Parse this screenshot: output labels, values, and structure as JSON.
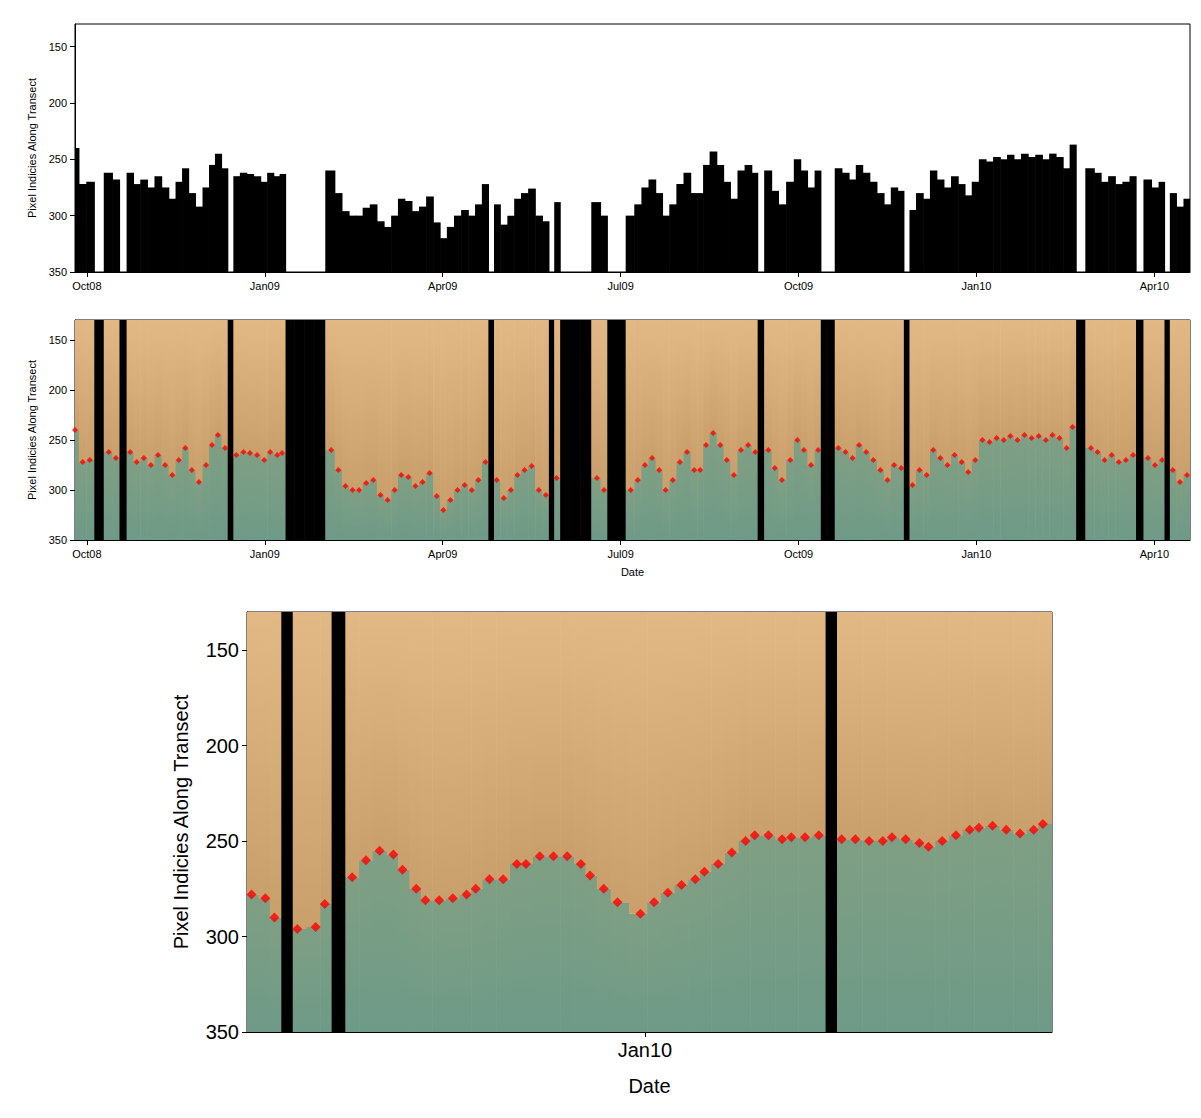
{
  "chart_data": [
    {
      "type": "area",
      "y_label": "Pixel Indicies Along Transect",
      "color": "#000000",
      "xlim": [
        -0.2,
        18.6
      ],
      "xticks": [
        {
          "value": 0,
          "label": "Oct08"
        },
        {
          "value": 3,
          "label": "Jan09"
        },
        {
          "value": 6,
          "label": "Apr09"
        },
        {
          "value": 9,
          "label": "Jul09"
        },
        {
          "value": 12,
          "label": "Oct09"
        },
        {
          "value": 15,
          "label": "Jan10"
        },
        {
          "value": 18,
          "label": "Apr10"
        }
      ],
      "ylim": [
        130,
        350
      ],
      "yticks": [
        150,
        200,
        250,
        300,
        350
      ],
      "grid": false,
      "x": [
        -0.2,
        -0.07,
        0.05,
        0.2,
        0.37,
        0.49,
        0.61,
        0.73,
        0.84,
        0.96,
        1.08,
        1.2,
        1.32,
        1.44,
        1.55,
        1.66,
        1.77,
        1.89,
        2.01,
        2.11,
        2.21,
        2.33,
        2.42,
        2.52,
        2.64,
        2.75,
        2.87,
        2.99,
        3.09,
        3.21,
        3.29,
        3.41,
        3.58,
        3.75,
        3.92,
        4.12,
        4.24,
        4.36,
        4.48,
        4.59,
        4.71,
        4.83,
        4.95,
        5.07,
        5.19,
        5.3,
        5.42,
        5.54,
        5.66,
        5.78,
        5.9,
        6.01,
        6.13,
        6.25,
        6.37,
        6.49,
        6.6,
        6.72,
        6.82,
        6.91,
        7.03,
        7.15,
        7.26,
        7.38,
        7.5,
        7.62,
        7.74,
        7.84,
        7.92,
        8.04,
        8.23,
        8.41,
        8.6,
        8.72,
        8.83,
        9.0,
        9.17,
        9.29,
        9.41,
        9.53,
        9.65,
        9.76,
        9.88,
        10.0,
        10.12,
        10.24,
        10.34,
        10.44,
        10.56,
        10.68,
        10.79,
        10.91,
        11.03,
        11.15,
        11.27,
        11.35,
        11.49,
        11.6,
        11.72,
        11.86,
        11.98,
        12.09,
        12.21,
        12.33,
        12.42,
        12.55,
        12.67,
        12.79,
        12.91,
        13.02,
        13.14,
        13.26,
        13.38,
        13.5,
        13.61,
        13.73,
        13.82,
        13.92,
        14.04,
        14.16,
        14.27,
        14.39,
        14.51,
        14.63,
        14.75,
        14.86,
        14.98,
        15.1,
        15.22,
        15.34,
        15.46,
        15.57,
        15.69,
        15.81,
        15.93,
        16.05,
        16.17,
        16.28,
        16.4,
        16.52,
        16.62,
        16.74,
        16.93,
        17.04,
        17.16,
        17.28,
        17.4,
        17.52,
        17.64,
        17.74,
        17.89,
        18.01,
        18.13,
        18.21,
        18.31,
        18.43,
        18.55
      ],
      "values": [
        240,
        272,
        270,
        null,
        262,
        268,
        null,
        262,
        272,
        268,
        275,
        265,
        275,
        285,
        270,
        258,
        280,
        292,
        275,
        255,
        245,
        258,
        null,
        265,
        262,
        263,
        265,
        270,
        262,
        265,
        263,
        null,
        null,
        null,
        null,
        260,
        280,
        296,
        300,
        300,
        293,
        290,
        305,
        310,
        300,
        285,
        287,
        296,
        292,
        283,
        306,
        320,
        310,
        300,
        295,
        300,
        290,
        272,
        null,
        290,
        308,
        300,
        285,
        280,
        276,
        300,
        305,
        null,
        288,
        null,
        null,
        null,
        288,
        300,
        null,
        null,
        300,
        290,
        275,
        268,
        280,
        300,
        290,
        272,
        262,
        280,
        280,
        255,
        243,
        255,
        270,
        285,
        260,
        255,
        262,
        null,
        260,
        278,
        290,
        270,
        250,
        260,
        275,
        260,
        null,
        null,
        258,
        262,
        268,
        255,
        262,
        270,
        280,
        290,
        275,
        278,
        null,
        295,
        280,
        285,
        260,
        268,
        275,
        265,
        272,
        282,
        270,
        250,
        252,
        248,
        250,
        246,
        250,
        245,
        248,
        246,
        250,
        245,
        248,
        258,
        237,
        null,
        258,
        262,
        270,
        265,
        272,
        270,
        265,
        null,
        268,
        275,
        270,
        null,
        280,
        292,
        285
      ]
    },
    {
      "type": "scatter",
      "y_label": "Pixel Indicies Along Transect",
      "x_label": "Date",
      "color": "#ff0000",
      "marker": "diamond",
      "xlim": [
        -0.2,
        18.6
      ],
      "xticks": [
        {
          "value": 0,
          "label": "Oct08"
        },
        {
          "value": 3,
          "label": "Jan09"
        },
        {
          "value": 6,
          "label": "Apr09"
        },
        {
          "value": 9,
          "label": "Jul09"
        },
        {
          "value": 12,
          "label": "Oct09"
        },
        {
          "value": 15,
          "label": "Jan10"
        },
        {
          "value": 18,
          "label": "Apr10"
        }
      ],
      "ylim": [
        130,
        350
      ],
      "yticks": [
        150,
        200,
        250,
        300,
        350
      ],
      "grid": false,
      "x": [
        -0.2,
        -0.07,
        0.05,
        0.2,
        0.37,
        0.49,
        0.61,
        0.73,
        0.84,
        0.96,
        1.08,
        1.2,
        1.32,
        1.44,
        1.55,
        1.66,
        1.77,
        1.89,
        2.01,
        2.11,
        2.21,
        2.33,
        2.42,
        2.52,
        2.64,
        2.75,
        2.87,
        2.99,
        3.09,
        3.21,
        3.29,
        3.41,
        3.58,
        3.75,
        3.92,
        4.12,
        4.24,
        4.36,
        4.48,
        4.59,
        4.71,
        4.83,
        4.95,
        5.07,
        5.19,
        5.3,
        5.42,
        5.54,
        5.66,
        5.78,
        5.9,
        6.01,
        6.13,
        6.25,
        6.37,
        6.49,
        6.6,
        6.72,
        6.82,
        6.91,
        7.03,
        7.15,
        7.26,
        7.38,
        7.5,
        7.62,
        7.74,
        7.84,
        7.92,
        8.04,
        8.23,
        8.41,
        8.6,
        8.72,
        8.83,
        9.0,
        9.17,
        9.29,
        9.41,
        9.53,
        9.65,
        9.76,
        9.88,
        10.0,
        10.12,
        10.24,
        10.34,
        10.44,
        10.56,
        10.68,
        10.79,
        10.91,
        11.03,
        11.15,
        11.27,
        11.35,
        11.49,
        11.6,
        11.72,
        11.86,
        11.98,
        12.09,
        12.21,
        12.33,
        12.42,
        12.55,
        12.67,
        12.79,
        12.91,
        13.02,
        13.14,
        13.26,
        13.38,
        13.5,
        13.61,
        13.73,
        13.82,
        13.92,
        14.04,
        14.16,
        14.27,
        14.39,
        14.51,
        14.63,
        14.75,
        14.86,
        14.98,
        15.1,
        15.22,
        15.34,
        15.46,
        15.57,
        15.69,
        15.81,
        15.93,
        16.05,
        16.17,
        16.28,
        16.4,
        16.52,
        16.62,
        16.74,
        16.93,
        17.04,
        17.16,
        17.28,
        17.4,
        17.52,
        17.64,
        17.74,
        17.89,
        18.01,
        18.13,
        18.21,
        18.31,
        18.43,
        18.55
      ],
      "values": [
        240,
        272,
        270,
        null,
        262,
        268,
        null,
        262,
        272,
        268,
        275,
        265,
        275,
        285,
        270,
        258,
        280,
        292,
        275,
        255,
        245,
        258,
        null,
        265,
        262,
        263,
        265,
        270,
        262,
        265,
        263,
        null,
        null,
        null,
        null,
        260,
        280,
        296,
        300,
        300,
        293,
        290,
        305,
        310,
        300,
        285,
        287,
        296,
        292,
        283,
        306,
        320,
        310,
        300,
        295,
        300,
        290,
        272,
        null,
        290,
        308,
        300,
        285,
        280,
        276,
        300,
        305,
        null,
        288,
        null,
        null,
        null,
        288,
        300,
        null,
        null,
        300,
        290,
        275,
        268,
        280,
        300,
        290,
        272,
        262,
        280,
        280,
        255,
        243,
        255,
        270,
        285,
        260,
        255,
        262,
        null,
        260,
        278,
        290,
        270,
        250,
        260,
        275,
        260,
        null,
        null,
        258,
        262,
        268,
        255,
        262,
        270,
        280,
        290,
        275,
        278,
        null,
        295,
        280,
        285,
        260,
        268,
        275,
        265,
        272,
        282,
        270,
        250,
        252,
        248,
        250,
        246,
        250,
        245,
        248,
        246,
        250,
        245,
        248,
        258,
        237,
        null,
        258,
        262,
        270,
        265,
        272,
        270,
        265,
        null,
        268,
        275,
        270,
        null,
        280,
        292,
        285
      ]
    },
    {
      "type": "scatter",
      "y_label": "Pixel Indicies Along Transect",
      "x_label": "Date",
      "color": "#ff0000",
      "marker": "diamond",
      "xlim": [
        14.13,
        15.89
      ],
      "xticks": [
        {
          "value": 15,
          "label": "Jan10"
        }
      ],
      "ylim": [
        130,
        350
      ],
      "yticks": [
        150,
        200,
        250,
        300,
        350
      ],
      "grid": false,
      "x": [
        14.14,
        14.17,
        14.19,
        14.22,
        14.24,
        14.28,
        14.3,
        14.33,
        14.36,
        14.39,
        14.42,
        14.45,
        14.47,
        14.5,
        14.52,
        14.55,
        14.58,
        14.61,
        14.63,
        14.66,
        14.69,
        14.72,
        14.74,
        14.77,
        14.8,
        14.83,
        14.86,
        14.88,
        14.91,
        14.94,
        14.99,
        15.02,
        15.05,
        15.08,
        15.11,
        15.13,
        15.16,
        15.19,
        15.22,
        15.24,
        15.27,
        15.3,
        15.32,
        15.35,
        15.38,
        15.41,
        15.43,
        15.46,
        15.49,
        15.52,
        15.54,
        15.57,
        15.6,
        15.62,
        15.65,
        15.68,
        15.71,
        15.73,
        15.76,
        15.79,
        15.82,
        15.85,
        15.87
      ],
      "values": [
        278,
        280,
        290,
        null,
        296,
        295,
        283,
        null,
        269,
        260,
        255,
        257,
        265,
        275,
        281,
        281,
        280,
        278,
        275,
        270,
        270,
        262,
        262,
        258,
        258,
        258,
        262,
        268,
        275,
        282,
        288,
        282,
        277,
        273,
        270,
        266,
        262,
        256,
        250,
        247,
        247,
        249,
        248,
        248,
        247,
        null,
        249,
        249,
        250,
        250,
        248,
        249,
        251,
        253,
        250,
        247,
        244,
        243,
        242,
        244,
        246,
        244,
        241
      ]
    }
  ]
}
